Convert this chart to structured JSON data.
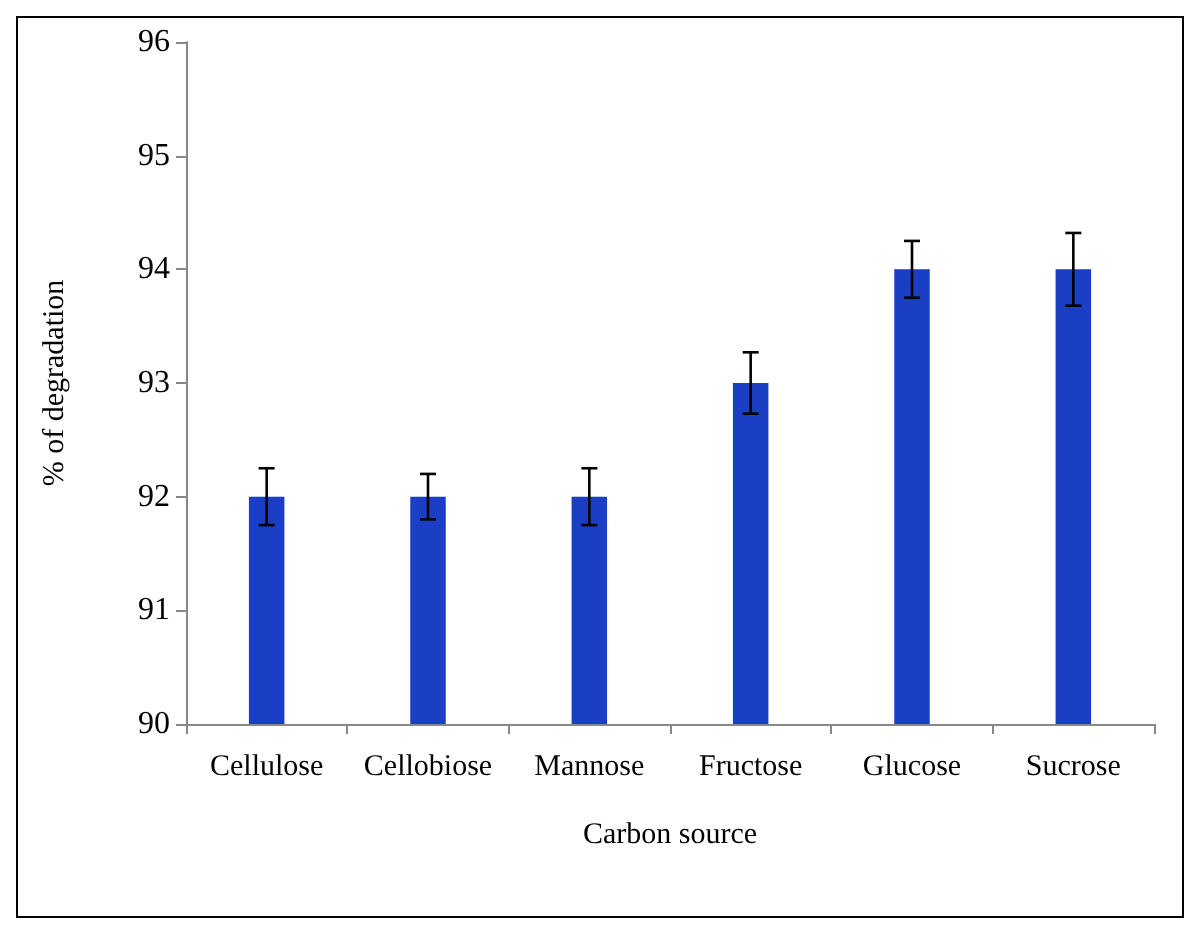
{
  "chart_data": {
    "type": "bar",
    "xlabel": "Carbon source",
    "ylabel": "% of degradation",
    "categories": [
      "Cellulose",
      "Cellobiose",
      "Mannose",
      "Fructose",
      "Glucose",
      "Sucrose"
    ],
    "values": [
      92,
      92,
      92,
      93,
      94,
      94
    ],
    "errors": [
      0.25,
      0.2,
      0.25,
      0.27,
      0.25,
      0.32
    ],
    "color": "#1a3fc4",
    "ylim": [
      90,
      96
    ],
    "yticks": [
      90,
      91,
      92,
      93,
      94,
      95,
      96
    ],
    "grid": false
  }
}
